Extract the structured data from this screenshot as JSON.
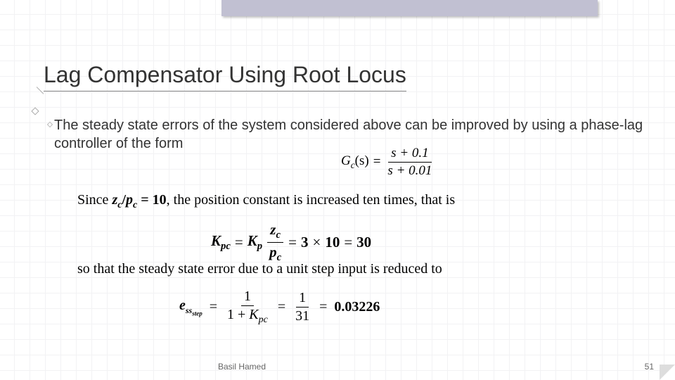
{
  "slide": {
    "title": "Lag Compensator Using Root Locus",
    "intro": "The steady state errors of the system considered above can be improved by using a phase-lag controller of the form",
    "author": "Basil Hamed",
    "page_number": "51",
    "colors": {
      "banner": "#c1c0d2",
      "grid": "#f2f2f4",
      "text_main": "#333333",
      "text_formula": "#000000",
      "footer": "#666666"
    },
    "font_sizes": {
      "title": 32,
      "body": 20,
      "formula": 20,
      "footer": 12
    }
  },
  "equations": {
    "gc": {
      "lhs": "G",
      "lhs_sub": "c",
      "arg": "(s)",
      "eq": "=",
      "num": "s + 0.1",
      "den": "s + 0.01"
    },
    "since": {
      "prefix": "Since ",
      "ratio_num": "z",
      "ratio_num_sub": "c",
      "slash": "/",
      "ratio_den": "p",
      "ratio_den_sub": "c",
      "eq": " = ",
      "val": "10",
      "suffix": ", the position constant is increased ten times, that is"
    },
    "kpc": {
      "K": "K",
      "pc": "pc",
      "eq1": "=",
      "Kp": "K",
      "p": "p",
      "frac_num": "z",
      "frac_num_sub": "c",
      "frac_den": "p",
      "frac_den_sub": "c",
      "eq2": "=",
      "three": "3",
      "times": "×",
      "ten": "10",
      "eq3": "=",
      "thirty": "30"
    },
    "so_that": "so that the steady state error due to a unit step input is reduced to",
    "ess": {
      "e": "e",
      "ss": "ss",
      "step": "step",
      "eq1": "=",
      "num1": "1",
      "den1_pre": "1 + ",
      "den1_K": "K",
      "den1_pc": "pc",
      "eq2": "=",
      "num2": "1",
      "den2": "31",
      "eq3": "=",
      "result": "0.03226"
    }
  }
}
